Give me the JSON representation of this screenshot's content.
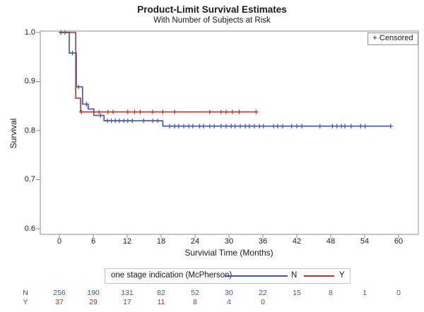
{
  "header": {
    "title": "Product-Limit Survival Estimates",
    "subtitle": "With Number of Subjects at Risk"
  },
  "plot": {
    "ylabel": "Survival",
    "xlabel": "Survivial Time (Months)",
    "censored_legend": "+ Censored"
  },
  "legend": {
    "label": "one stage indication (McPherson)",
    "series": [
      {
        "name": "N",
        "color": "#4155A0"
      },
      {
        "name": "Y",
        "color": "#A43B32"
      }
    ]
  },
  "at_risk": {
    "rows": [
      {
        "label": "N",
        "color": "#4155A0",
        "values": [
          "256",
          "190",
          "131",
          "82",
          "52",
          "30",
          "22",
          "15",
          "8",
          "1",
          "0"
        ]
      },
      {
        "label": "Y",
        "color": "#A43B32",
        "values": [
          "37",
          "29",
          "17",
          "11",
          "8",
          "4",
          "0"
        ]
      }
    ]
  },
  "chart_data": {
    "type": "line",
    "subtype": "kaplan-meier-step",
    "title": "Product-Limit Survival Estimates",
    "subtitle": "With Number of Subjects at Risk",
    "xlabel": "Survivial Time (Months)",
    "ylabel": "Survival",
    "xlim": [
      0,
      63
    ],
    "ylim": [
      0.6,
      1.0
    ],
    "x_ticks": [
      0,
      6,
      12,
      18,
      24,
      30,
      36,
      42,
      48,
      54,
      60
    ],
    "y_ticks": [
      1.0,
      0.9,
      0.8,
      0.7,
      0.6
    ],
    "grid": false,
    "frame_color": "#8a8a8a",
    "legend_position": "bottom",
    "series": [
      {
        "name": "N",
        "color": "#4155A0",
        "steps": [
          [
            0,
            1.0
          ],
          [
            1.75,
            1.0
          ],
          [
            1.75,
            0.958
          ],
          [
            3.0,
            0.958
          ],
          [
            3.0,
            0.889
          ],
          [
            4.1,
            0.889
          ],
          [
            4.1,
            0.854
          ],
          [
            5.1,
            0.854
          ],
          [
            5.1,
            0.844
          ],
          [
            6.1,
            0.844
          ],
          [
            6.1,
            0.831
          ],
          [
            7.9,
            0.831
          ],
          [
            7.9,
            0.82
          ],
          [
            18.3,
            0.82
          ],
          [
            18.3,
            0.809
          ],
          [
            58.6,
            0.809
          ]
        ],
        "censors": [
          [
            0.3,
            1.0
          ],
          [
            1.0,
            1.0
          ],
          [
            2.3,
            0.958
          ],
          [
            3.4,
            0.889
          ],
          [
            4.8,
            0.854
          ],
          [
            7.3,
            0.831
          ],
          [
            8.5,
            0.82
          ],
          [
            9.2,
            0.82
          ],
          [
            9.9,
            0.82
          ],
          [
            10.6,
            0.82
          ],
          [
            11.4,
            0.82
          ],
          [
            12.1,
            0.82
          ],
          [
            12.9,
            0.82
          ],
          [
            14.9,
            0.82
          ],
          [
            16.5,
            0.82
          ],
          [
            17.4,
            0.82
          ],
          [
            19.5,
            0.809
          ],
          [
            20.4,
            0.809
          ],
          [
            21.1,
            0.809
          ],
          [
            22.0,
            0.809
          ],
          [
            22.9,
            0.809
          ],
          [
            23.6,
            0.809
          ],
          [
            24.8,
            0.809
          ],
          [
            25.5,
            0.809
          ],
          [
            26.6,
            0.809
          ],
          [
            27.4,
            0.809
          ],
          [
            28.6,
            0.809
          ],
          [
            29.5,
            0.809
          ],
          [
            30.4,
            0.809
          ],
          [
            31.1,
            0.809
          ],
          [
            32.0,
            0.809
          ],
          [
            32.9,
            0.809
          ],
          [
            33.6,
            0.809
          ],
          [
            34.5,
            0.809
          ],
          [
            35.4,
            0.809
          ],
          [
            36.1,
            0.809
          ],
          [
            37.9,
            0.809
          ],
          [
            38.6,
            0.809
          ],
          [
            39.5,
            0.809
          ],
          [
            41.1,
            0.809
          ],
          [
            42.0,
            0.809
          ],
          [
            42.9,
            0.809
          ],
          [
            46.1,
            0.809
          ],
          [
            48.3,
            0.809
          ],
          [
            49.1,
            0.809
          ],
          [
            49.9,
            0.809
          ],
          [
            50.5,
            0.809
          ],
          [
            51.6,
            0.809
          ],
          [
            53.3,
            0.809
          ],
          [
            54.1,
            0.809
          ],
          [
            58.6,
            0.809
          ]
        ],
        "at_risk": [
          256,
          190,
          131,
          82,
          52,
          30,
          22,
          15,
          8,
          1,
          0
        ]
      },
      {
        "name": "Y",
        "color": "#A43B32",
        "steps": [
          [
            0,
            1.0
          ],
          [
            2.9,
            1.0
          ],
          [
            2.9,
            0.866
          ],
          [
            3.75,
            0.866
          ],
          [
            3.75,
            0.838
          ],
          [
            34.8,
            0.838
          ]
        ],
        "censors": [
          [
            3.9,
            0.838
          ],
          [
            6.1,
            0.838
          ],
          [
            7.0,
            0.838
          ],
          [
            8.6,
            0.838
          ],
          [
            9.5,
            0.838
          ],
          [
            12.1,
            0.838
          ],
          [
            13.3,
            0.838
          ],
          [
            14.3,
            0.838
          ],
          [
            16.5,
            0.838
          ],
          [
            18.3,
            0.838
          ],
          [
            20.4,
            0.838
          ],
          [
            26.6,
            0.838
          ],
          [
            28.6,
            0.838
          ],
          [
            29.5,
            0.838
          ],
          [
            30.6,
            0.838
          ],
          [
            31.8,
            0.838
          ],
          [
            34.8,
            0.838
          ]
        ],
        "at_risk": [
          37,
          29,
          17,
          11,
          8,
          4,
          0
        ]
      }
    ]
  }
}
